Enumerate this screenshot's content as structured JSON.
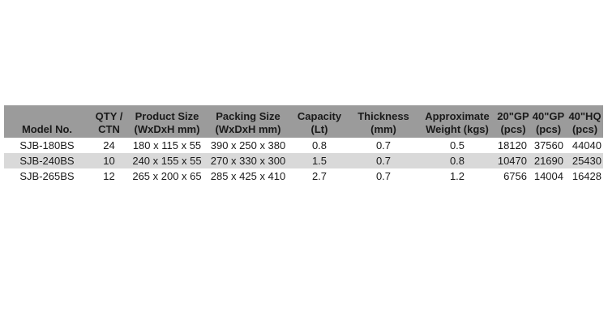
{
  "colors": {
    "header_bg": "#9b9b9b",
    "alt_row_bg": "#d9d9d9",
    "text": "#1a1a1a",
    "page_bg": "#ffffff"
  },
  "table": {
    "headers": [
      {
        "line1": "Model No.",
        "line2": ""
      },
      {
        "line1": "QTY /",
        "line2": "CTN"
      },
      {
        "line1": "Product Size",
        "line2": "(WxDxH mm)"
      },
      {
        "line1": "Packing Size",
        "line2": "(WxDxH mm)"
      },
      {
        "line1": "Capacity",
        "line2": "(Lt)"
      },
      {
        "line1": "Thickness",
        "line2": "(mm)"
      },
      {
        "line1": "Approximate",
        "line2": "Weight (kgs)"
      },
      {
        "line1": "20\"GP",
        "line2": "(pcs)"
      },
      {
        "line1": "40\"GP",
        "line2": "(pcs)"
      },
      {
        "line1": "40\"HQ",
        "line2": "(pcs)"
      }
    ],
    "rows": [
      {
        "model": "SJB-180BS",
        "qty_ctn": "24",
        "product_size": "180 x 115 x 55",
        "packing_size": "390 x 250 x 380",
        "capacity": "0.8",
        "thickness": "0.7",
        "weight": "0.5",
        "gp20": "18120",
        "gp40": "37560",
        "hq40": "44040"
      },
      {
        "model": "SJB-240BS",
        "qty_ctn": "10",
        "product_size": "240 x 155 x 55",
        "packing_size": "270 x 330 x 300",
        "capacity": "1.5",
        "thickness": "0.7",
        "weight": "0.8",
        "gp20": "10470",
        "gp40": "21690",
        "hq40": "25430"
      },
      {
        "model": "SJB-265BS",
        "qty_ctn": "12",
        "product_size": "265 x 200 x 65",
        "packing_size": "285 x 425 x 410",
        "capacity": "2.7",
        "thickness": "0.7",
        "weight": "1.2",
        "gp20": "6756",
        "gp40": "14004",
        "hq40": "16428"
      }
    ]
  }
}
